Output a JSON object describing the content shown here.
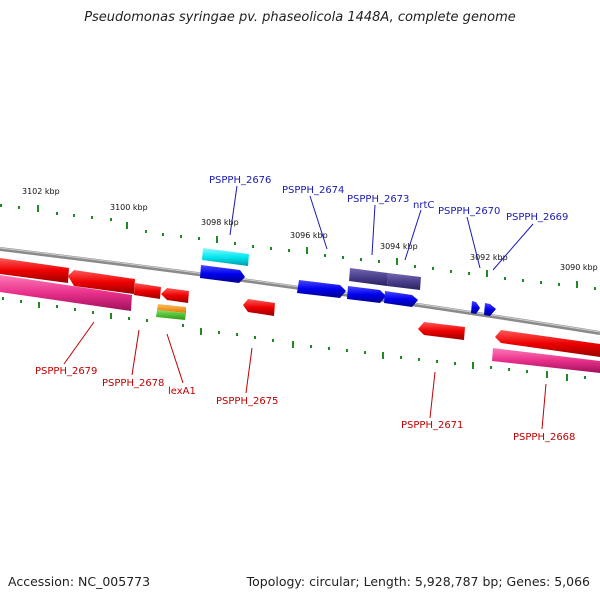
{
  "title": "Pseudomonas syringae pv. phaseolicola 1448A, complete genome",
  "footer": {
    "accession": "Accession: NC_005773",
    "summary": "Topology: circular; Length: 5,928,787 bp; Genes: 5,066"
  },
  "scale_labels": [
    "3102 kbp",
    "3100 kbp",
    "3098 kbp",
    "3096 kbp",
    "3094 kbp",
    "3092 kbp",
    "3090 kbp"
  ],
  "genes_top": [
    "PSPPH_2676",
    "PSPPH_2674",
    "PSPPH_2673",
    "nrtC",
    "PSPPH_2670",
    "PSPPH_2669"
  ],
  "genes_bottom": [
    "PSPPH_2679",
    "PSPPH_2678",
    "lexA1",
    "PSPPH_2675",
    "PSPPH_2671",
    "PSPPH_2668"
  ],
  "colors": {
    "forward_gene": "#0000ee",
    "reverse_gene": "#ee0000",
    "cds_pink": "#e8308a",
    "highlight_cyan": "#00e8f0",
    "slate_gene": "#4a3f8c",
    "backbone": "#888888",
    "tick_green": "#228822"
  }
}
